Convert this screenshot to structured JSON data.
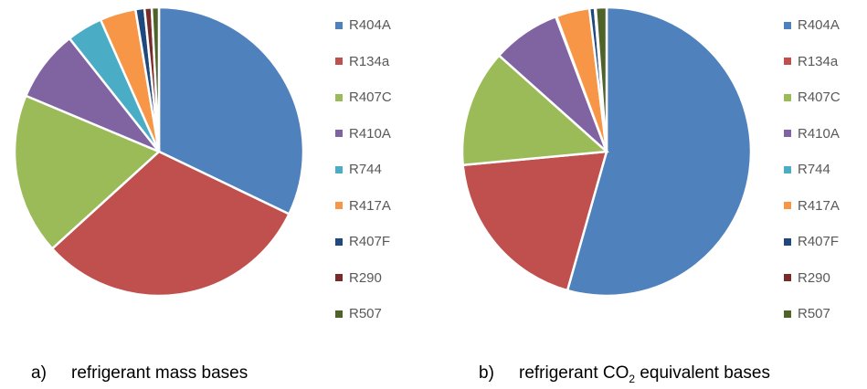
{
  "chart_data": [
    {
      "type": "pie",
      "title": "",
      "caption_letter": "a)",
      "caption": "refrigerant mass bases",
      "labels": [
        "R404A",
        "R134a",
        "R407C",
        "R410A",
        "R744",
        "R417A",
        "R407F",
        "R290",
        "R507"
      ],
      "values": [
        32,
        31,
        18,
        8,
        4,
        4,
        1,
        0.8,
        0.8
      ],
      "colors": [
        "#4f81bd",
        "#c0504d",
        "#9bbb59",
        "#8064a2",
        "#4bacc6",
        "#f79646",
        "#1f497d",
        "#772c2a",
        "#4f6228"
      ],
      "legend": "right"
    },
    {
      "type": "pie",
      "title": "",
      "caption_letter": "b)",
      "caption_pre": "refrigerant CO",
      "caption_sub": "2",
      "caption_post": " equivalent bases",
      "labels": [
        "R404A",
        "R134a",
        "R407C",
        "R410A",
        "R744",
        "R417A",
        "R407F",
        "R290",
        "R507"
      ],
      "values": [
        54,
        19,
        13,
        7.6,
        0.1,
        3.7,
        0.6,
        0.1,
        1.2
      ],
      "colors": [
        "#4f81bd",
        "#c0504d",
        "#9bbb59",
        "#8064a2",
        "#4bacc6",
        "#f79646",
        "#1f497d",
        "#772c2a",
        "#4f6228"
      ],
      "legend": "right"
    }
  ]
}
